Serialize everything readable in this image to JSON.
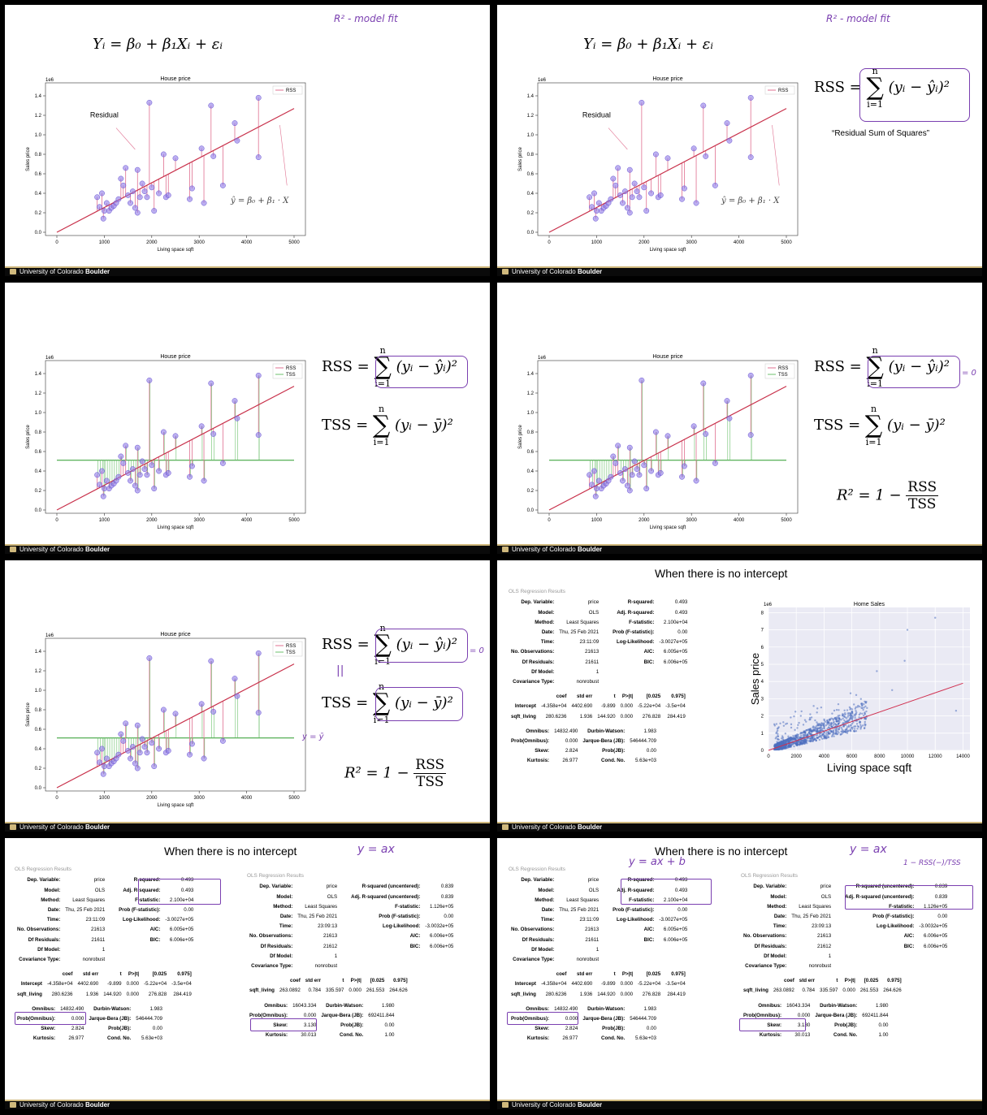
{
  "footer": {
    "institution": "University of Colorado",
    "institution_bold": "Boulder"
  },
  "equations": {
    "model": "Yᵢ = β₀ + β₁Xᵢ + εᵢ",
    "fitted": "ŷ = β₀ + β₁ · X",
    "rss_lhs": "RSS =",
    "tss_lhs": "TSS =",
    "rss_term": "(yᵢ − ŷᵢ)²",
    "tss_term": "(yᵢ − ȳ)²",
    "sum_top": "n",
    "sum_bottom": "i=1",
    "r2_lhs": "R² = 1 −",
    "r2_num": "RSS",
    "r2_den": "TSS",
    "rss_name": "“Residual Sum of Squares”"
  },
  "handwriting": {
    "r2_fit": "R² -  model fit",
    "eq_zero": "= 0",
    "parallel": "||",
    "y_eq_ybar": "y = ȳ",
    "y_ax": "y = ax",
    "y_axb": "y = ax + b",
    "one_minus": "1 − RSS(−)/TSS"
  },
  "charts": {
    "title": "House price",
    "xlabel": "Living space sqft",
    "ylabel": "Sales price",
    "scale": "1e6",
    "legend_rss": "RSS",
    "legend_tss": "TSS",
    "annotation_residual": "Residual",
    "xticks": [
      "0",
      "1000",
      "2000",
      "3000",
      "4000",
      "5000"
    ],
    "yticks": [
      "0.0",
      "0.2",
      "0.4",
      "0.6",
      "0.8",
      "1.0",
      "1.2",
      "1.4"
    ]
  },
  "chart_data": {
    "type": "scatter",
    "title": "House price",
    "xlabel": "Living space sqft",
    "ylabel": "Sales price",
    "xlim": [
      0,
      5000
    ],
    "ylim": [
      0,
      1.5
    ],
    "scale": "1e6",
    "fit_line": {
      "x": [
        0,
        5000
      ],
      "y": [
        0.0,
        1.27
      ]
    },
    "mean_y": 0.51,
    "points": [
      [
        850,
        0.36
      ],
      [
        900,
        0.26
      ],
      [
        950,
        0.4
      ],
      [
        980,
        0.14
      ],
      [
        1000,
        0.22
      ],
      [
        1050,
        0.3
      ],
      [
        1100,
        0.22
      ],
      [
        1150,
        0.25
      ],
      [
        1200,
        0.27
      ],
      [
        1250,
        0.3
      ],
      [
        1300,
        0.34
      ],
      [
        1350,
        0.55
      ],
      [
        1400,
        0.48
      ],
      [
        1450,
        0.66
      ],
      [
        1500,
        0.38
      ],
      [
        1550,
        0.3
      ],
      [
        1600,
        0.42
      ],
      [
        1650,
        0.25
      ],
      [
        1700,
        0.2
      ],
      [
        1700,
        0.64
      ],
      [
        1750,
        0.36
      ],
      [
        1800,
        0.5
      ],
      [
        1850,
        0.42
      ],
      [
        1900,
        0.36
      ],
      [
        1950,
        1.33
      ],
      [
        2000,
        0.46
      ],
      [
        2050,
        0.22
      ],
      [
        2150,
        0.4
      ],
      [
        2250,
        0.8
      ],
      [
        2300,
        0.36
      ],
      [
        2350,
        0.38
      ],
      [
        2500,
        0.76
      ],
      [
        2800,
        0.34
      ],
      [
        2850,
        0.45
      ],
      [
        3050,
        0.86
      ],
      [
        3100,
        0.3
      ],
      [
        3250,
        1.3
      ],
      [
        3300,
        0.78
      ],
      [
        3500,
        0.48
      ],
      [
        3750,
        1.12
      ],
      [
        3800,
        0.94
      ],
      [
        4250,
        1.38
      ],
      [
        4250,
        0.77
      ]
    ]
  },
  "panel6": {
    "heading": "When there is no intercept",
    "chart_title": "Home Sales",
    "xlabel": "Living space sqft",
    "ylabel": "Sales price",
    "scale": "1e6",
    "xticks": [
      "0",
      "2000",
      "4000",
      "6000",
      "8000",
      "10000",
      "12000",
      "14000"
    ],
    "yticks": [
      "0",
      "1",
      "2",
      "3",
      "4",
      "5",
      "6",
      "7",
      "8"
    ],
    "chart_data": {
      "type": "scatter",
      "xlim": [
        0,
        14500
      ],
      "ylim": [
        0,
        8.3
      ],
      "fit_line": {
        "x": [
          0,
          14000
        ],
        "y": [
          0.0,
          3.9
        ]
      }
    }
  },
  "ols_intercept": {
    "header": "OLS Regression Results",
    "rows": [
      [
        "Dep. Variable:",
        "price",
        "R-squared:",
        "0.493"
      ],
      [
        "Model:",
        "OLS",
        "Adj. R-squared:",
        "0.493"
      ],
      [
        "Method:",
        "Least Squares",
        "F-statistic:",
        "2.100e+04"
      ],
      [
        "Date:",
        "Thu, 25 Feb 2021",
        "Prob (F-statistic):",
        "0.00"
      ],
      [
        "Time:",
        "23:11:09",
        "Log-Likelihood:",
        "-3.0027e+05"
      ],
      [
        "No. Observations:",
        "21613",
        "AIC:",
        "6.005e+05"
      ],
      [
        "Df Residuals:",
        "21611",
        "BIC:",
        "6.006e+05"
      ],
      [
        "Df Model:",
        "1",
        "",
        ""
      ],
      [
        "Covariance Type:",
        "nonrobust",
        "",
        ""
      ]
    ],
    "coef_header": [
      "",
      "coef",
      "std err",
      "t",
      "P>|t|",
      "[0.025",
      "0.975]"
    ],
    "coef_rows": [
      [
        "Intercept",
        "-4.358e+04",
        "4402.690",
        "-9.899",
        "0.000",
        "-5.22e+04",
        "-3.5e+04"
      ],
      [
        "sqft_living",
        "280.6236",
        "1.936",
        "144.920",
        "0.000",
        "276.828",
        "284.419"
      ]
    ],
    "diag_rows": [
      [
        "Omnibus:",
        "14832.490",
        "Durbin-Watson:",
        "1.983"
      ],
      [
        "Prob(Omnibus):",
        "0.000",
        "Jarque-Bera (JB):",
        "546444.709"
      ],
      [
        "Skew:",
        "2.824",
        "Prob(JB):",
        "0.00"
      ],
      [
        "Kurtosis:",
        "26.977",
        "Cond. No.",
        "5.63e+03"
      ]
    ]
  },
  "ols_no_intercept": {
    "header": "OLS Regression Results",
    "rows": [
      [
        "Dep. Variable:",
        "price",
        "R-squared (uncentered):",
        "0.839"
      ],
      [
        "Model:",
        "OLS",
        "Adj. R-squared (uncentered):",
        "0.839"
      ],
      [
        "Method:",
        "Least Squares",
        "F-statistic:",
        "1.126e+05"
      ],
      [
        "Date:",
        "Thu, 25 Feb 2021",
        "Prob (F-statistic):",
        "0.00"
      ],
      [
        "Time:",
        "23:09:13",
        "Log-Likelihood:",
        "-3.0032e+05"
      ],
      [
        "No. Observations:",
        "21613",
        "AIC:",
        "6.006e+05"
      ],
      [
        "Df Residuals:",
        "21612",
        "BIC:",
        "6.006e+05"
      ],
      [
        "Df Model:",
        "1",
        "",
        ""
      ],
      [
        "Covariance Type:",
        "nonrobust",
        "",
        ""
      ]
    ],
    "coef_header": [
      "",
      "coef",
      "std err",
      "t",
      "P>|t|",
      "[0.025",
      "0.975]"
    ],
    "coef_rows": [
      [
        "sqft_living",
        "263.0892",
        "0.784",
        "335.597",
        "0.000",
        "261.553",
        "264.626"
      ]
    ],
    "diag_rows": [
      [
        "Omnibus:",
        "16043.334",
        "Durbin-Watson:",
        "1.980"
      ],
      [
        "Prob(Omnibus):",
        "0.000",
        "Jarque-Bera (JB):",
        "692411.844"
      ],
      [
        "Skew:",
        "3.130",
        "Prob(JB):",
        "0.00"
      ],
      [
        "Kurtosis:",
        "30.013",
        "Cond. No.",
        "1.00"
      ]
    ]
  }
}
